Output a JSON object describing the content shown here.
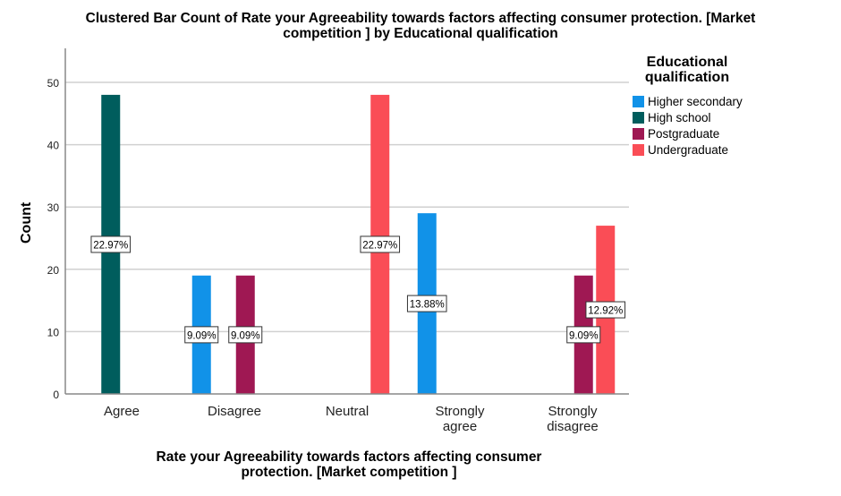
{
  "chart_data": {
    "type": "bar",
    "title": "Clustered Bar Count of Rate your Agreeability towards factors affecting consumer protection. [Market competition ] by Educational qualification",
    "title_lines": [
      "Clustered Bar Count of Rate your Agreeability towards factors affecting consumer protection. [Market",
      "competition ] by Educational qualification"
    ],
    "xlabel": "Rate your Agreeability towards factors affecting consumer protection. [Market competition ]",
    "xlabel_lines": [
      "Rate your Agreeability towards factors affecting consumer",
      "protection. [Market competition ]"
    ],
    "ylabel": "Count",
    "ylim": [
      0,
      55
    ],
    "yticks": [
      0,
      10,
      20,
      30,
      40,
      50
    ],
    "grid": true,
    "categories": [
      "Agree",
      "Disagree",
      "Neutral",
      "Strongly agree",
      "Strongly disagree"
    ],
    "category_lines": [
      [
        "Agree"
      ],
      [
        "Disagree"
      ],
      [
        "Neutral"
      ],
      [
        "Strongly",
        "agree"
      ],
      [
        "Strongly",
        "disagree"
      ]
    ],
    "legend": {
      "title": "Educational qualification",
      "title_lines": [
        "Educational",
        "qualification"
      ],
      "placement": "right"
    },
    "series": [
      {
        "name": "Higher secondary",
        "color": "#1192e8",
        "values": [
          0,
          19,
          0,
          29,
          0
        ],
        "labels": [
          null,
          "9.09%",
          null,
          "13.88%",
          null
        ]
      },
      {
        "name": "High school",
        "color": "#005d5d",
        "values": [
          48,
          0,
          0,
          0,
          0
        ],
        "labels": [
          "22.97%",
          null,
          null,
          null,
          null
        ]
      },
      {
        "name": "Postgraduate",
        "color": "#9f1853",
        "values": [
          0,
          19,
          0,
          0,
          19
        ],
        "labels": [
          null,
          "9.09%",
          null,
          null,
          "9.09%"
        ]
      },
      {
        "name": "Undergraduate",
        "color": "#fa4d56",
        "values": [
          0,
          0,
          48,
          0,
          27
        ],
        "labels": [
          null,
          null,
          "22.97%",
          null,
          "12.92%"
        ]
      }
    ]
  }
}
